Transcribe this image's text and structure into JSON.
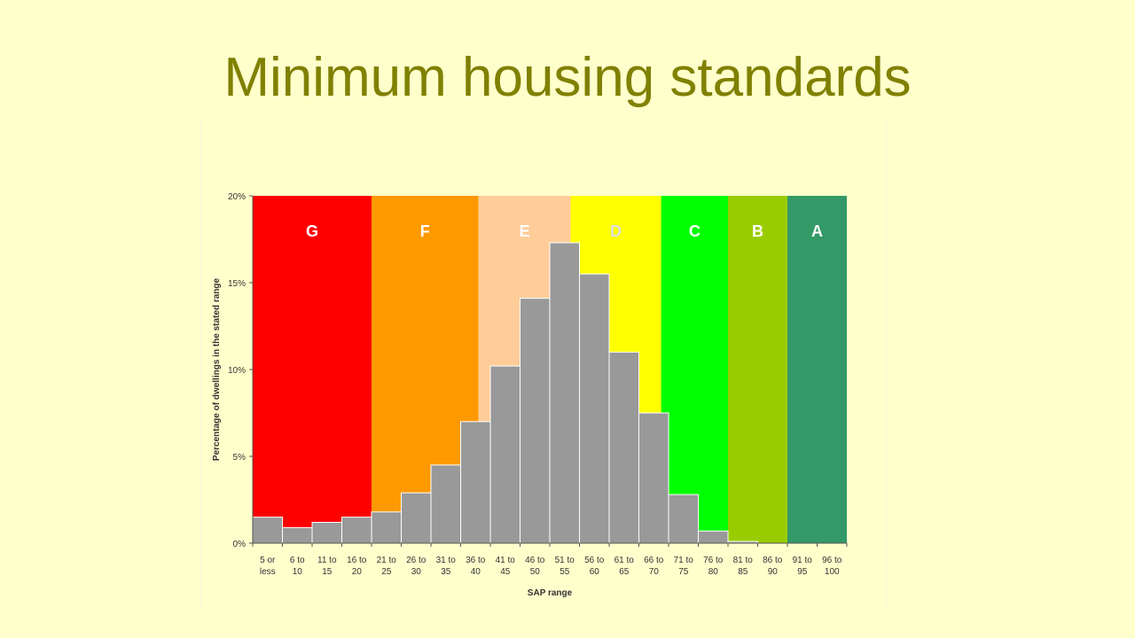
{
  "slide": {
    "title": "Minimum housing standards"
  },
  "chart_data": {
    "type": "bar",
    "categories": [
      [
        "5 or",
        "less"
      ],
      [
        "6 to",
        "10"
      ],
      [
        "11 to",
        "15"
      ],
      [
        "16 to",
        "20"
      ],
      [
        "21 to",
        "25"
      ],
      [
        "26 to",
        "30"
      ],
      [
        "31 to",
        "35"
      ],
      [
        "36 to",
        "40"
      ],
      [
        "41 to",
        "45"
      ],
      [
        "46 to",
        "50"
      ],
      [
        "51 to",
        "55"
      ],
      [
        "56 to",
        "60"
      ],
      [
        "61 to",
        "65"
      ],
      [
        "66 to",
        "70"
      ],
      [
        "71 to",
        "75"
      ],
      [
        "76 to",
        "80"
      ],
      [
        "81 to",
        "85"
      ],
      [
        "86 to",
        "90"
      ],
      [
        "91 to",
        "95"
      ],
      [
        "96 to",
        "100"
      ]
    ],
    "values": [
      1.5,
      0.9,
      1.2,
      1.5,
      1.8,
      2.9,
      4.5,
      7.0,
      10.2,
      14.1,
      17.3,
      15.5,
      11.0,
      7.5,
      2.8,
      0.7,
      0.1,
      0,
      0,
      0
    ],
    "bar_color": "#999999",
    "xlabel": "SAP range",
    "ylabel": "Percentage of dwellings in the stated range",
    "ylim": [
      0,
      20
    ],
    "yticks": [
      {
        "value": 0,
        "label": "0%"
      },
      {
        "value": 5,
        "label": "5%"
      },
      {
        "value": 10,
        "label": "10%"
      },
      {
        "value": 15,
        "label": "15%"
      },
      {
        "value": 20,
        "label": "20%"
      }
    ],
    "bands": [
      {
        "label": "G",
        "from": 0,
        "to": 4,
        "color": "#FF0000",
        "label_color": "#ffffff"
      },
      {
        "label": "F",
        "from": 4,
        "to": 7.6,
        "color": "#FF9900",
        "label_color": "#ffffff"
      },
      {
        "label": "E",
        "from": 7.6,
        "to": 10.7,
        "color": "#FFCC99",
        "label_color": "#ffffff"
      },
      {
        "label": "D",
        "from": 10.7,
        "to": 13.75,
        "color": "#FFFF00",
        "label_color": "#dddddd"
      },
      {
        "label": "C",
        "from": 13.75,
        "to": 16,
        "color": "#00FF00",
        "label_color": "#ffffff"
      },
      {
        "label": "B",
        "from": 16,
        "to": 18,
        "color": "#99CC00",
        "label_color": "#ffffff"
      },
      {
        "label": "A",
        "from": 18,
        "to": 20,
        "color": "#339966",
        "label_color": "#ffffff"
      }
    ],
    "grid": false,
    "legend": "none"
  }
}
